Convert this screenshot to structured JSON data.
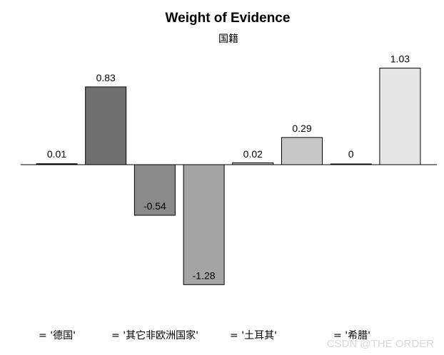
{
  "chart_data": {
    "type": "bar",
    "title": "Weight of Evidence",
    "subtitle": "国籍",
    "values": [
      0.01,
      0.83,
      -0.54,
      -1.28,
      0.02,
      0.29,
      0,
      1.03
    ],
    "value_labels": [
      "0.01",
      "0.83",
      "-0.54",
      "-1.28",
      "0.02",
      "0.29",
      "0",
      "1.03"
    ],
    "bar_colors": [
      "#000000",
      "#707070",
      "#8a8a8a",
      "#a4a4a4",
      "#b0b0b0",
      "#c8c8c8",
      "#d8d8d8",
      "#e6e6e6"
    ],
    "visible_category_labels": [
      "= '德国'",
      "= '其它非欧洲国家'",
      "= '土耳其'",
      "= '希腊'"
    ],
    "ylim": [
      -1.3,
      1.05
    ],
    "baseline": 0,
    "grid": false,
    "xlabel": "",
    "ylabel": ""
  },
  "watermark": "CSDN @THE ORDER"
}
